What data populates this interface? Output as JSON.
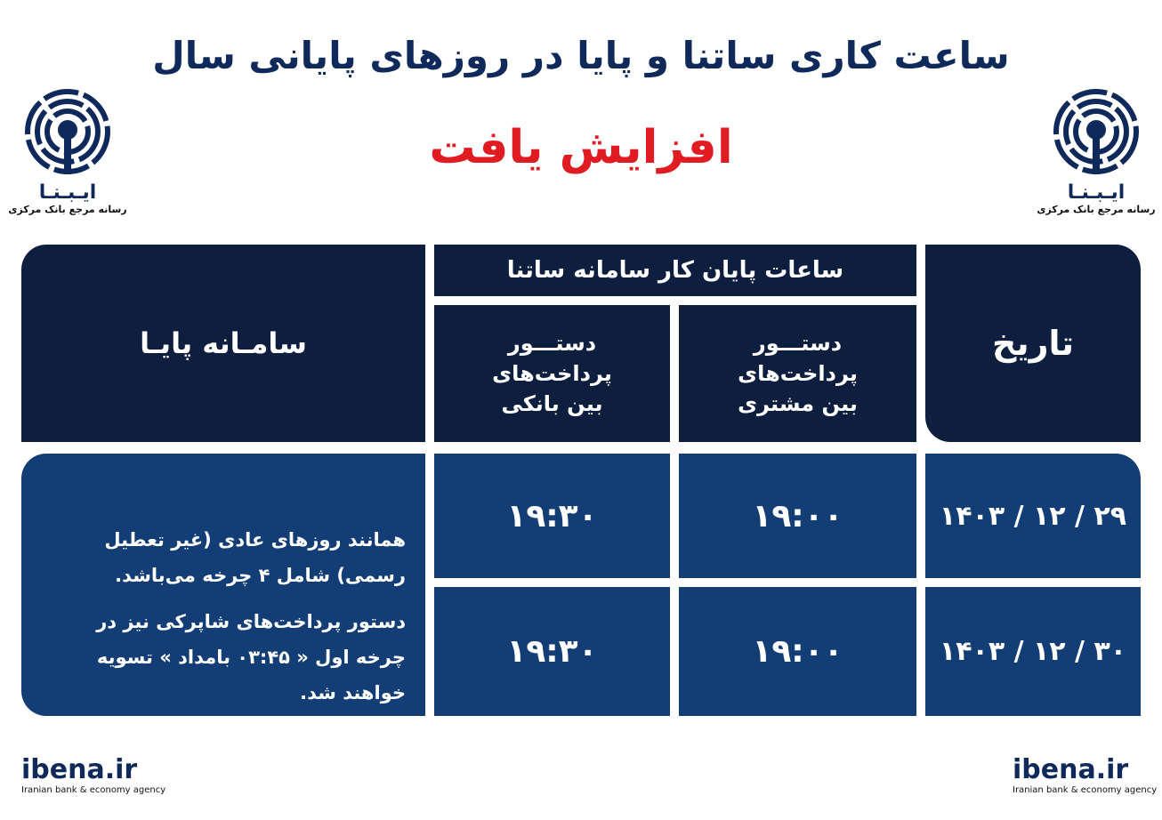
{
  "header": {
    "title": "ساعت کاری ساتنا و پایا در روزهای پایانی سال",
    "subtitle": "افزایش یافت"
  },
  "logo": {
    "name": "ایـبـنـا",
    "tagline": "رسانه مرجع بانک مرکزی",
    "icon": "broadcast-antenna-icon"
  },
  "colors": {
    "title": "#0f2a5a",
    "subtitle": "#e01b22",
    "header_cell": "#0e1e3f",
    "body_cell": "#133d75"
  },
  "table": {
    "headers": {
      "date": "تاریخ",
      "satna_group": "ساعات پایان کار سامانه ساتنا",
      "satna_customer": [
        "دستـــور",
        "پرداخت‌های",
        "بین مشتری"
      ],
      "satna_interbank": [
        "دستـــور",
        "پرداخت‌های",
        "بین بانکی"
      ],
      "paya": "سامـانه پایـا"
    },
    "rows": [
      {
        "date": "۱۴۰۳ / ۱۲ / ۲۹",
        "customer": "۱۹:۰۰",
        "interbank": "۱۹:۳۰"
      },
      {
        "date": "۱۴۰۳ / ۱۲ / ۳۰",
        "customer": "۱۹:۰۰",
        "interbank": "۱۹:۳۰"
      }
    ],
    "paya_notes": [
      "همانند روزهای عادی (غیر تعطیل رسمی) شامل ۴ چرخه می‌باشد.",
      "دستور پرداخت‌های شاپرکی نیز در چرخه اول « ۰۳:۴۵ بامداد » تسویه خواهند شد."
    ]
  },
  "footer": {
    "site": "ibena.ir",
    "agency": "Iranian bank & economy agency"
  }
}
